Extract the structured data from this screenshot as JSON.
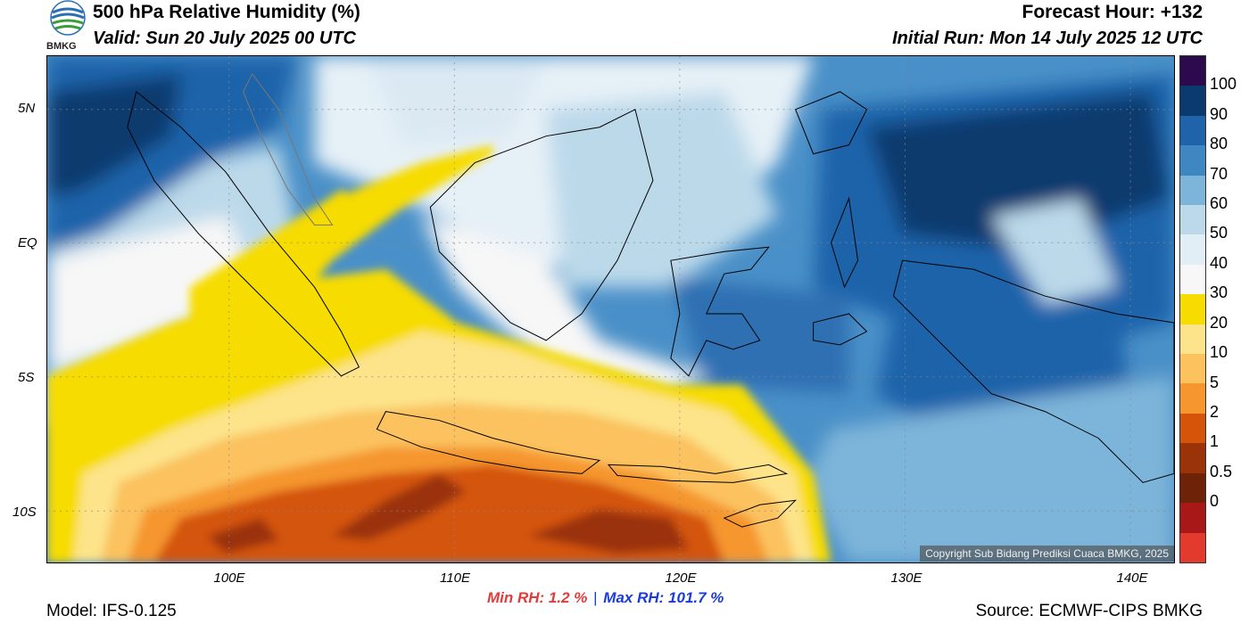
{
  "header": {
    "title": "500 hPa Relative Humidity (%)",
    "valid": "Valid: Sun 20 July 2025 00 UTC",
    "forecast_hour": "Forecast Hour: +132",
    "initial_run": "Initial Run: Mon 14 July 2025 12 UTC"
  },
  "logo": {
    "icon": "bmkg-logo-icon",
    "text": "BMKG"
  },
  "axes": {
    "lat_labels": [
      "5N",
      "EQ",
      "5S",
      "10S"
    ],
    "lon_labels": [
      "100E",
      "110E",
      "120E",
      "130E",
      "140E"
    ]
  },
  "colorbar": {
    "labels": [
      "100",
      "90",
      "80",
      "70",
      "60",
      "50",
      "40",
      "30",
      "20",
      "10",
      "5",
      "2",
      "1",
      "0.5",
      "0"
    ],
    "colors": [
      "#2d0a4e",
      "#0b3a6e",
      "#1f63aa",
      "#3f87c2",
      "#7db4d9",
      "#bcd9ea",
      "#e2eef6",
      "#f7f7f7",
      "#f7dc00",
      "#fde38a",
      "#fbc25e",
      "#f5962f",
      "#d4540a",
      "#9a3308",
      "#6e2207",
      "#a81818",
      "#e23b2d"
    ]
  },
  "stats": {
    "min_label": "Min RH:   1.2 %",
    "separator": "|",
    "max_label": "Max RH: 101.7 %",
    "min_color": "#e23b3b",
    "max_color": "#1a3cdb"
  },
  "footer": {
    "model": "Model: IFS-0.125",
    "source": "Source: ECMWF-CIPS BMKG",
    "copyright": "Copyright Sub Bidang Prediksi Cuaca BMKG, 2025"
  }
}
